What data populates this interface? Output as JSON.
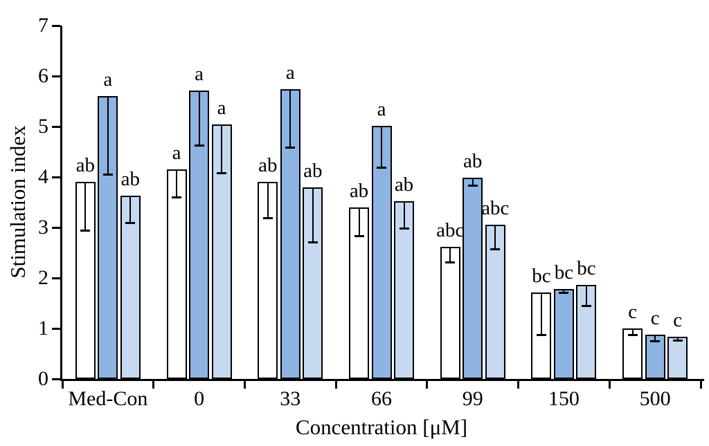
{
  "chart_data": {
    "type": "bar",
    "title": "",
    "xlabel": "Concentration [μM]",
    "ylabel": "Stimulation index",
    "ylim": [
      0,
      7
    ],
    "yticks": [
      "0",
      "1",
      "2",
      "3",
      "4",
      "5",
      "6",
      "7"
    ],
    "grid": false,
    "legend_position": "none",
    "error_bars": "minus-direction-with-caps",
    "categories": [
      "Med-Con",
      "0",
      "33",
      "66",
      "99",
      "150",
      "500"
    ],
    "series": [
      {
        "name": "white-bars",
        "color": "#FFFFFF",
        "values": [
          3.9,
          4.15,
          3.9,
          3.4,
          2.61,
          1.71,
          1.0
        ],
        "errors_minus": [
          0.95,
          0.55,
          0.71,
          0.57,
          0.29,
          0.84,
          0.13
        ],
        "sig_labels": [
          "ab",
          "a",
          "ab",
          "ab",
          "abc",
          "bc",
          "c"
        ]
      },
      {
        "name": "medium-blue-bars",
        "color": "#8DB4E2",
        "values": [
          5.6,
          5.71,
          5.74,
          5.02,
          3.99,
          1.78,
          0.87
        ],
        "errors_minus": [
          1.55,
          1.08,
          1.15,
          0.83,
          0.16,
          0.07,
          0.12
        ],
        "sig_labels": [
          "a",
          "a",
          "a",
          "a",
          "ab",
          "bc",
          "c"
        ]
      },
      {
        "name": "light-blue-bars",
        "color": "#C6D9F1",
        "values": [
          3.63,
          5.04,
          3.8,
          3.52,
          3.05,
          1.86,
          0.83
        ],
        "errors_minus": [
          0.53,
          0.96,
          1.09,
          0.54,
          0.47,
          0.41,
          0.06
        ],
        "sig_labels": [
          "ab",
          "a",
          "ab",
          "ab",
          "abc",
          "bc",
          "c"
        ]
      }
    ],
    "bar_outline_color": "#000000",
    "error_bar_color": "#000000",
    "axis_color": "#000000",
    "text_color": "#000000"
  }
}
